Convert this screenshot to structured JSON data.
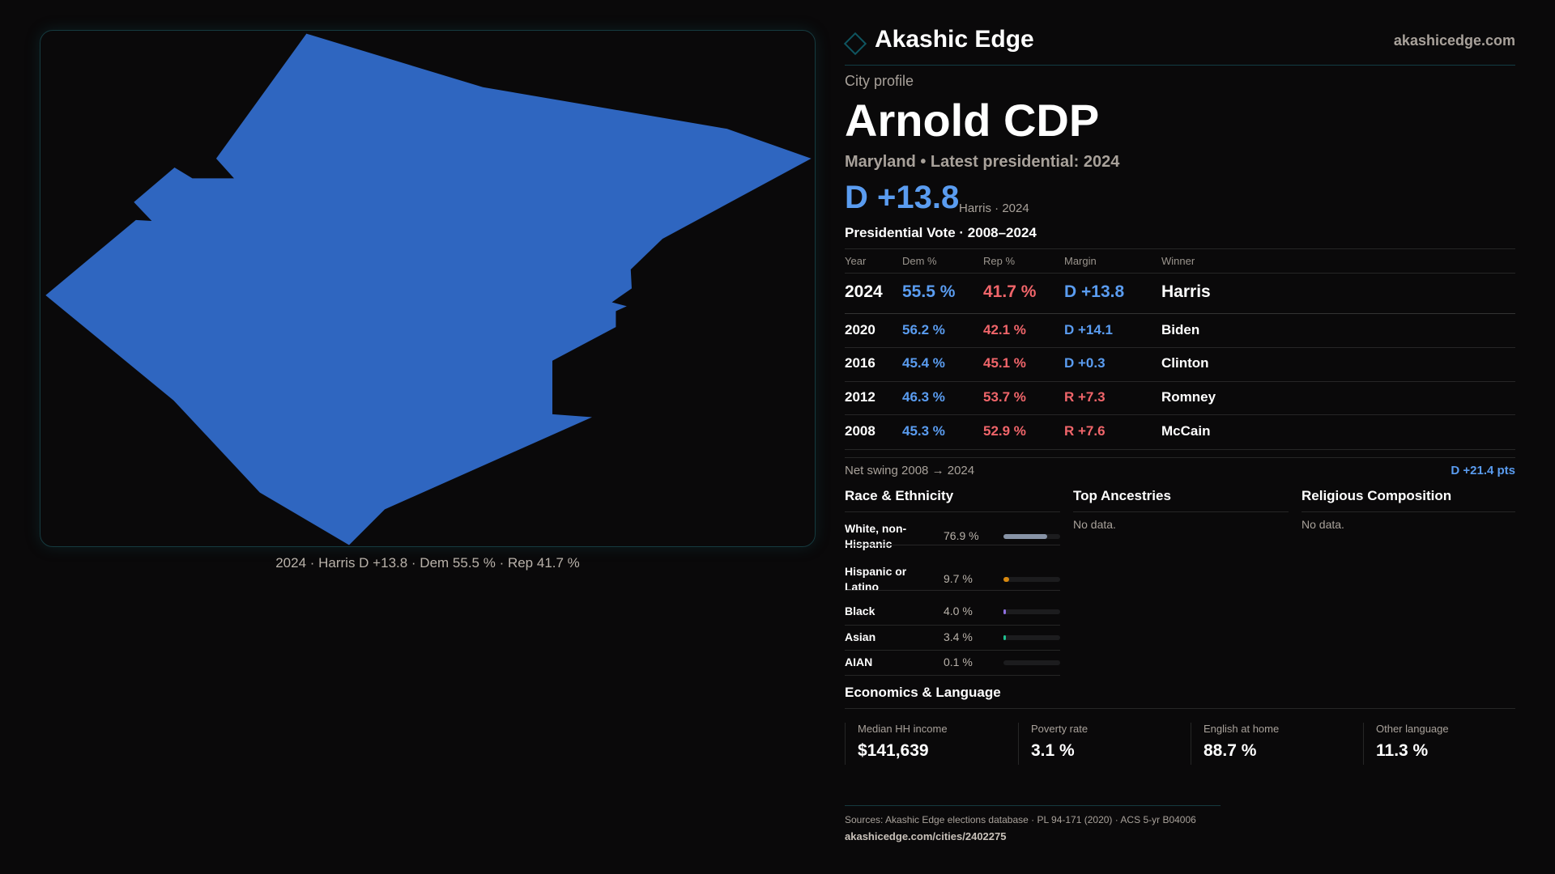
{
  "brand": {
    "name": "Akashic Edge",
    "site": "akashicedge.com"
  },
  "profile": {
    "kicker": "City profile",
    "title": "Arnold CDP",
    "subtitle": "Maryland • Latest presidential: 2024",
    "margin": "D +13.8",
    "margin_note": "Harris · 2024"
  },
  "map": {
    "caption": "2024 · Harris D +13.8 · Dem 55.5 % · Rep 41.7 %",
    "fill": "#2f66c0"
  },
  "votes": {
    "title": "Presidential Vote · 2008–2024",
    "headers": [
      "Year",
      "Dem %",
      "Rep %",
      "Margin",
      "Winner"
    ],
    "rows": [
      {
        "year": "2024",
        "dem": "55.5 %",
        "rep": "41.7 %",
        "margin": "D +13.8",
        "winner": "Harris",
        "party": "D"
      },
      {
        "year": "2020",
        "dem": "56.2 %",
        "rep": "42.1 %",
        "margin": "D +14.1",
        "winner": "Biden",
        "party": "D"
      },
      {
        "year": "2016",
        "dem": "45.4 %",
        "rep": "45.1 %",
        "margin": "D +0.3",
        "winner": "Clinton",
        "party": "D"
      },
      {
        "year": "2012",
        "dem": "46.3 %",
        "rep": "53.7 %",
        "margin": "R +7.3",
        "winner": "Romney",
        "party": "R"
      },
      {
        "year": "2008",
        "dem": "45.3 %",
        "rep": "52.9 %",
        "margin": "R +7.6",
        "winner": "McCain",
        "party": "R"
      }
    ],
    "swing_label": "Net swing 2008 → 2024",
    "swing_value": "D +21.4 pts"
  },
  "race": {
    "title": "Race & Ethnicity",
    "rows": [
      {
        "label": "White, non-Hispanic",
        "pct": "76.9 %",
        "value": 76.9,
        "color": "#8793a6"
      },
      {
        "label": "Hispanic or Latino",
        "pct": "9.7 %",
        "value": 9.7,
        "color": "#d9890f"
      },
      {
        "label": "Black",
        "pct": "4.0 %",
        "value": 4.0,
        "color": "#8f6fe0"
      },
      {
        "label": "Asian",
        "pct": "3.4 %",
        "value": 3.4,
        "color": "#1fbf8f"
      },
      {
        "label": "AIAN",
        "pct": "0.1 %",
        "value": 0.1,
        "color": "#888888"
      }
    ]
  },
  "ancestries": {
    "title": "Top Ancestries",
    "empty": "No data."
  },
  "religion": {
    "title": "Religious Composition",
    "empty": "No data."
  },
  "economics": {
    "title": "Economics & Language",
    "cards": [
      {
        "label": "Median HH income",
        "value": "$141,639"
      },
      {
        "label": "Poverty rate",
        "value": "3.1 %"
      },
      {
        "label": "English at home",
        "value": "88.7 %"
      },
      {
        "label": "Other language",
        "value": "11.3 %"
      }
    ]
  },
  "footer": {
    "sources": "Sources: Akashic Edge elections database · PL 94-171 (2020) · ACS 5-yr B04006",
    "url": "akashicedge.com/cities/2402275"
  }
}
